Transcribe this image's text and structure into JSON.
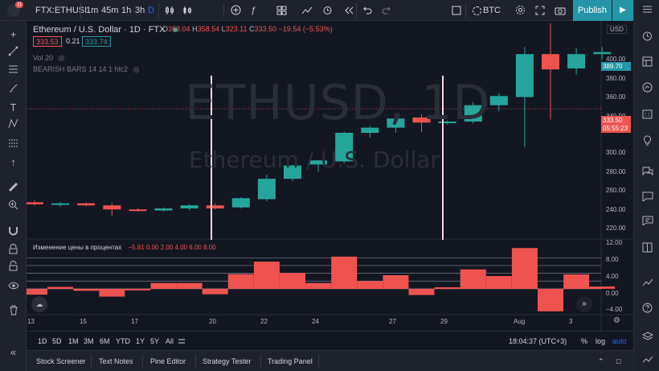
{
  "toolbar": {
    "symbol": "FTX:ETHUSI",
    "intervals": [
      "1m",
      "45m",
      "1h",
      "3h",
      "D"
    ],
    "active_interval": "D",
    "indicators_label": "",
    "compare_label": "BTC",
    "publish_label": "Publish",
    "notification_badge": "11"
  },
  "legend": {
    "title": "Ethereum / U.S. Dollar · 1D · FTX",
    "ohlc": [
      {
        "label": "O",
        "value": "353.04"
      },
      {
        "label": "H",
        "value": "358.54"
      },
      {
        "label": "L",
        "value": "323.11"
      },
      {
        "label": "C",
        "value": "333.50"
      },
      {
        "label": "",
        "value": "−19.54 (−5.53%)"
      }
    ],
    "bid": "333.53",
    "spread": "0.21",
    "ask": "333.74",
    "vol_label": "Vol 20",
    "bearish_label": "BEARISH BARS 14 14 1 hlc2"
  },
  "watermark": {
    "symbol": "ETHUSD, 1D",
    "name": "Ethereum / U.S. Dollar"
  },
  "price_axis": {
    "currency": "USD",
    "ticks": [
      "400.00",
      "380.00",
      "360.00",
      "340.00",
      "320.00",
      "300.00",
      "280.00",
      "260.00",
      "240.00",
      "220.00"
    ],
    "last_price": "389.70",
    "current_price": "333.50",
    "countdown": "05:55:23"
  },
  "oscillator": {
    "title": "Изменение цены в процентах",
    "values_text": "−5.81  0.00  2.00  4.00  6.00  8.00",
    "ticks": [
      "12.00",
      "8.00",
      "4.00",
      "0.00",
      "−4.00"
    ]
  },
  "time_axis": {
    "ticks": [
      "13",
      "15",
      "17",
      "20",
      "22",
      "24",
      "27",
      "29",
      "Aug",
      "3"
    ]
  },
  "bottom": {
    "ranges": [
      "1D",
      "5D",
      "1M",
      "3M",
      "6M",
      "YTD",
      "1Y",
      "5Y",
      "All"
    ],
    "time": "18:04:37 (UTC+3)",
    "pct": "%",
    "log": "log",
    "auto": "auto"
  },
  "tabs": [
    "Stock Screener",
    "Text Notes",
    "Pine Editor",
    "Strategy Tester",
    "Trading Panel"
  ],
  "colors": {
    "up": "#26a69a",
    "down": "#ef5350",
    "bg": "#131722",
    "panel": "#1e222d",
    "accent": "#2496a8"
  },
  "chart_data": {
    "type": "candlestick",
    "y_range": [
      210,
      410
    ],
    "candles": [
      {
        "o": 242,
        "h": 244,
        "l": 239,
        "c": 240
      },
      {
        "o": 240,
        "h": 242,
        "l": 238,
        "c": 241
      },
      {
        "o": 241,
        "h": 242,
        "l": 238,
        "c": 239
      },
      {
        "o": 239,
        "h": 241,
        "l": 229,
        "c": 235
      },
      {
        "o": 235,
        "h": 236,
        "l": 233,
        "c": 234
      },
      {
        "o": 234,
        "h": 237,
        "l": 233,
        "c": 236
      },
      {
        "o": 236,
        "h": 240,
        "l": 234,
        "c": 239
      },
      {
        "o": 239,
        "h": 241,
        "l": 235,
        "c": 236
      },
      {
        "o": 237,
        "h": 247,
        "l": 236,
        "c": 246
      },
      {
        "o": 245,
        "h": 269,
        "l": 243,
        "c": 265
      },
      {
        "o": 265,
        "h": 279,
        "l": 263,
        "c": 278
      },
      {
        "o": 279,
        "h": 283,
        "l": 272,
        "c": 283
      },
      {
        "o": 282,
        "h": 311,
        "l": 280,
        "c": 310
      },
      {
        "o": 310,
        "h": 317,
        "l": 305,
        "c": 315
      },
      {
        "o": 315,
        "h": 328,
        "l": 310,
        "c": 324
      },
      {
        "o": 325,
        "h": 328,
        "l": 311,
        "c": 320
      },
      {
        "o": 320,
        "h": 322,
        "l": 318,
        "c": 321
      },
      {
        "o": 321,
        "h": 340,
        "l": 319,
        "c": 337
      },
      {
        "o": 337,
        "h": 349,
        "l": 331,
        "c": 346
      },
      {
        "o": 345,
        "h": 394,
        "l": 296,
        "c": 387
      },
      {
        "o": 387,
        "h": 417,
        "l": 323,
        "c": 372
      },
      {
        "o": 373,
        "h": 393,
        "l": 367,
        "c": 387
      },
      {
        "o": 387,
        "h": 394,
        "l": 382,
        "c": 389
      }
    ],
    "oscillator": [
      -1.5,
      0.5,
      -0.5,
      -2.0,
      -0.4,
      1.5,
      1.5,
      -1.4,
      3.8,
      7.0,
      4.1,
      1.5,
      8.3,
      2.0,
      3.5,
      -1.6,
      0.4,
      5.0,
      3.3,
      10.5,
      -5.8,
      3.7,
      0.6
    ]
  }
}
